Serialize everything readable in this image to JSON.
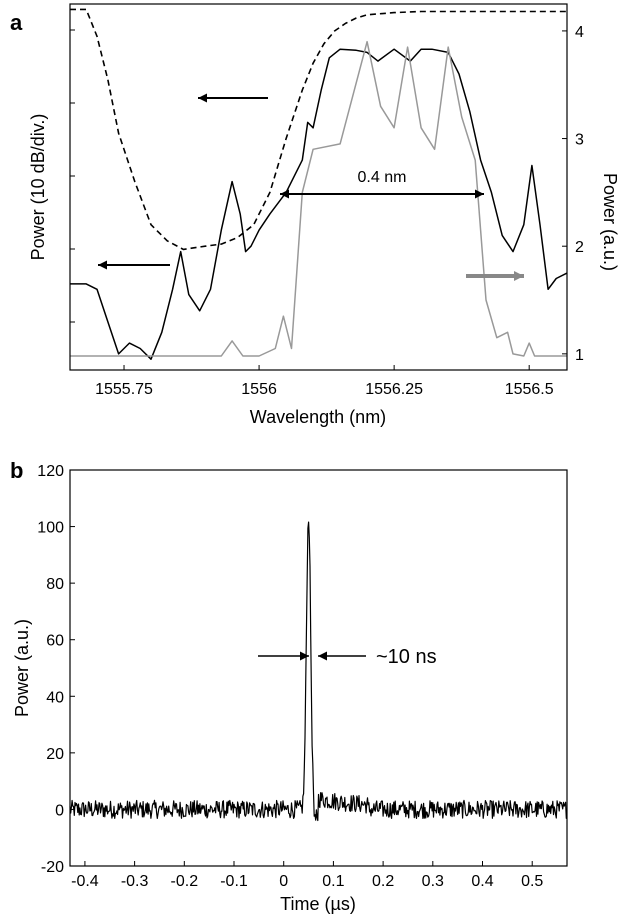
{
  "chart_data": [
    {
      "panel_label": "a",
      "type": "line",
      "xlabel": "Wavelength (nm)",
      "ylabel_left": "Power (10 dB/div.)",
      "ylabel_right": "Power (a.u.)",
      "xlim": [
        1555.65,
        1556.57
      ],
      "ylim_right": [
        0.85,
        4.25
      ],
      "x_ticks": [
        1555.75,
        1556,
        1556.25,
        1556.5
      ],
      "x_tick_labels": [
        "1555.75",
        "1556",
        "1556.25",
        "1556.5"
      ],
      "y_right_ticks": [
        1,
        2,
        3,
        4
      ],
      "y_right_tick_labels": [
        "1",
        "2",
        "3",
        "4"
      ],
      "left_axis_ticks_count": 5,
      "annotation": "0.4 nm",
      "colors": {
        "black": "#000000",
        "gray": "#999999",
        "arrow_gray": "#888888"
      },
      "series": [
        {
          "style": "dashed",
          "axis": "left",
          "color": "#000000",
          "x": [
            1555.65,
            1555.68,
            1555.7,
            1555.72,
            1555.74,
            1555.77,
            1555.8,
            1555.83,
            1555.86,
            1555.9,
            1555.93,
            1555.96,
            1555.99,
            1556.02,
            1556.05,
            1556.08,
            1556.1,
            1556.12,
            1556.14,
            1556.16,
            1556.18,
            1556.2,
            1556.25,
            1556.3,
            1556.4,
            1556.5,
            1556.57
          ],
          "y": [
            4.2,
            4.2,
            3.95,
            3.55,
            3.05,
            2.6,
            2.2,
            2.05,
            1.97,
            2.0,
            2.02,
            2.08,
            2.2,
            2.5,
            3.0,
            3.45,
            3.7,
            3.88,
            4.0,
            4.07,
            4.12,
            4.15,
            4.17,
            4.18,
            4.18,
            4.18,
            4.18
          ]
        },
        {
          "style": "solid",
          "axis": "left",
          "color": "#000000",
          "x": [
            1555.65,
            1555.68,
            1555.7,
            1555.72,
            1555.74,
            1555.76,
            1555.78,
            1555.8,
            1555.82,
            1555.84,
            1555.855,
            1555.87,
            1555.89,
            1555.91,
            1555.93,
            1555.95,
            1555.965,
            1555.975,
            1555.985,
            1556.0,
            1556.02,
            1556.05,
            1556.08,
            1556.09,
            1556.1,
            1556.115,
            1556.13,
            1556.15,
            1556.18,
            1556.2,
            1556.22,
            1556.25,
            1556.28,
            1556.3,
            1556.32,
            1556.35,
            1556.37,
            1556.39,
            1556.41,
            1556.43,
            1556.45,
            1556.47,
            1556.49,
            1556.505,
            1556.52,
            1556.535,
            1556.55,
            1556.57
          ],
          "y": [
            1.65,
            1.65,
            1.6,
            1.3,
            1.0,
            1.1,
            1.05,
            0.95,
            1.2,
            1.6,
            1.95,
            1.55,
            1.4,
            1.6,
            2.15,
            2.6,
            2.3,
            1.95,
            2.0,
            2.15,
            2.3,
            2.5,
            2.8,
            3.15,
            3.1,
            3.45,
            3.75,
            3.83,
            3.82,
            3.8,
            3.72,
            3.83,
            3.72,
            3.83,
            3.83,
            3.8,
            3.6,
            3.25,
            2.8,
            2.5,
            2.1,
            1.95,
            2.2,
            2.75,
            2.2,
            1.6,
            1.7,
            1.75
          ]
        },
        {
          "style": "solid",
          "axis": "right",
          "color": "#999999",
          "x": [
            1555.65,
            1555.8,
            1555.93,
            1555.95,
            1555.97,
            1556.0,
            1556.03,
            1556.045,
            1556.06,
            1556.08,
            1556.1,
            1556.15,
            1556.2,
            1556.225,
            1556.25,
            1556.275,
            1556.3,
            1556.325,
            1556.35,
            1556.375,
            1556.4,
            1556.42,
            1556.44,
            1556.46,
            1556.47,
            1556.49,
            1556.5,
            1556.51,
            1556.53,
            1556.57
          ],
          "y": [
            0.98,
            0.98,
            0.98,
            1.12,
            0.98,
            0.98,
            1.05,
            1.35,
            1.05,
            2.5,
            2.9,
            2.95,
            3.9,
            3.3,
            3.1,
            3.85,
            3.1,
            2.9,
            3.85,
            3.2,
            2.8,
            1.5,
            1.15,
            1.2,
            1.0,
            0.98,
            1.1,
            0.98,
            0.98,
            0.98
          ]
        }
      ]
    },
    {
      "panel_label": "b",
      "type": "line",
      "xlabel": "Time (µs)",
      "ylabel": "Power (a.u.)",
      "xlim": [
        -0.43,
        0.57
      ],
      "ylim": [
        -20,
        120
      ],
      "x_ticks": [
        -0.4,
        -0.3,
        -0.2,
        -0.1,
        0,
        0.1,
        0.2,
        0.3,
        0.4,
        0.5
      ],
      "x_tick_labels": [
        "-0.4",
        "-0.3",
        "-0.2",
        "-0.1",
        "0",
        "0.1",
        "0.2",
        "0.3",
        "0.4",
        "0.5"
      ],
      "y_ticks": [
        -20,
        0,
        20,
        40,
        60,
        80,
        100,
        120
      ],
      "y_tick_labels": [
        "-20",
        "0",
        "20",
        "40",
        "60",
        "80",
        "100",
        "120"
      ],
      "annotation": "~10 ns",
      "pulse": {
        "center_us": 0.05,
        "peak": 104,
        "fwhm_ns": 10
      },
      "noise_amplitude": 2,
      "post_pulse_level": 4,
      "series": [
        {
          "color": "#000000",
          "style": "solid"
        }
      ]
    }
  ]
}
